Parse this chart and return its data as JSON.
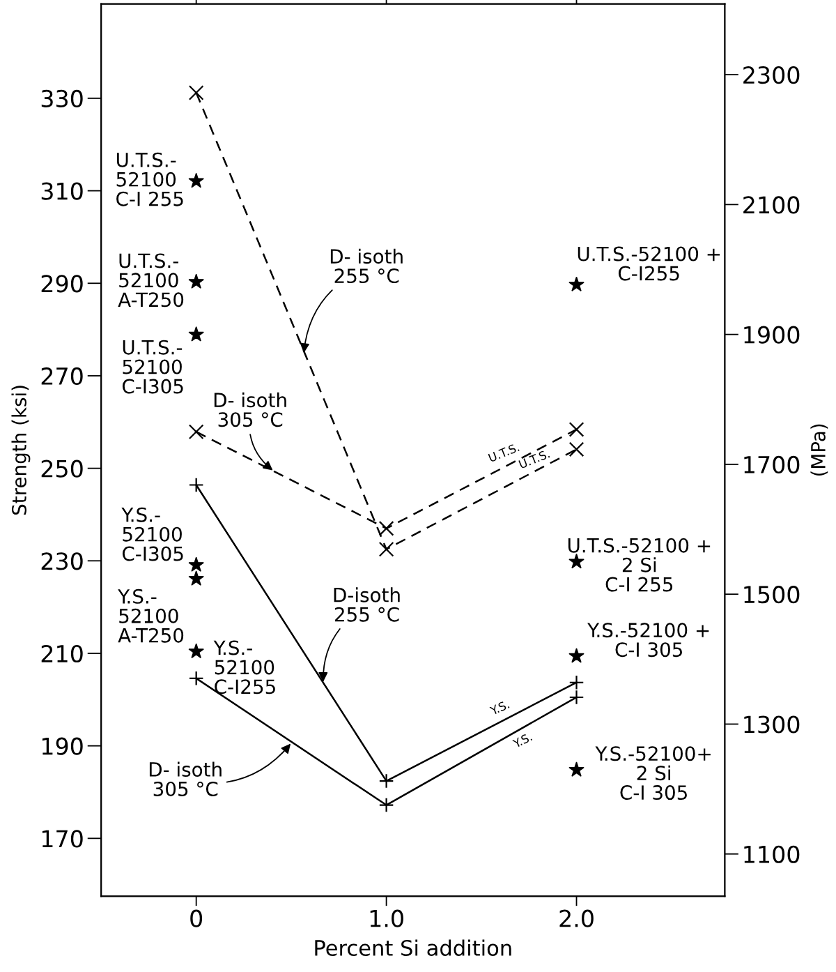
{
  "chart_data": {
    "type": "line",
    "xlabel": "Percent Si addition",
    "ylabel": "Strength (ksi)",
    "y2label": "(MPa)",
    "xlim": [
      -0.5,
      2.78
    ],
    "xticks": [
      0,
      {
        "value": 1,
        "label": "1.0"
      },
      {
        "value": 2,
        "label": "2.0"
      }
    ],
    "ylim": [
      157.5,
      350.4
    ],
    "yticks": [
      170,
      190,
      210,
      230,
      250,
      270,
      290,
      310,
      330
    ],
    "y2lim": [
      1035,
      2409
    ],
    "y2ticks": [
      1100,
      1300,
      1500,
      1700,
      1900,
      2100,
      2300
    ],
    "grid": false,
    "series": [
      {
        "type": "line",
        "x": [
          0,
          1,
          2
        ],
        "values": [
          331.2,
          232.5,
          254.1
        ],
        "color": "#000000",
        "marker": "cross",
        "line_style": "dashed"
      },
      {
        "type": "line",
        "x": [
          0,
          1,
          2
        ],
        "values": [
          257.9,
          237.0,
          258.4
        ],
        "color": "#000000",
        "marker": "cross",
        "line_style": "dashed"
      },
      {
        "type": "line",
        "x": [
          0,
          1,
          2
        ],
        "values": [
          246.4,
          182.4,
          203.7
        ],
        "color": "#000000",
        "marker": "plus",
        "line_style": "solid"
      },
      {
        "type": "line",
        "x": [
          0,
          1,
          2
        ],
        "values": [
          204.6,
          177.2,
          200.5
        ],
        "color": "#000000",
        "marker": "plus",
        "line_style": "solid"
      },
      {
        "type": "scatter",
        "x": [
          0,
          0,
          0,
          0,
          0,
          0,
          2,
          2,
          2,
          2
        ],
        "values": [
          312.1,
          290.3,
          278.9,
          229.1,
          226.1,
          210.4,
          289.7,
          229.8,
          209.4,
          184.8
        ],
        "color": "#000000",
        "marker": "star"
      }
    ],
    "annotations": [
      {
        "text": "U.T.S.-\n52100\nC-I 255",
        "x": 0,
        "y": 312.1
      },
      {
        "text": "U.T.S.-\n52100\nA-T250",
        "x": 0,
        "y": 290.3
      },
      {
        "text": "U.T.S.-\n52100\nC-I305",
        "x": 0,
        "y": 278.9
      },
      {
        "text": "Y.S.-\n52100\nC-I305",
        "x": 0,
        "y": 229.1
      },
      {
        "text": "Y.S.-\n52100\nA-T250",
        "x": 0,
        "y": 226.1
      },
      {
        "text": "Y.S.-\n52100\nC-I255",
        "x": 0,
        "y": 210.4
      },
      {
        "text": "U.T.S.-52100 +\nC-I255",
        "x": 2,
        "y": 289.7
      },
      {
        "text": "U.T.S.-52100 +\n2 Si\nC-I 255",
        "x": 2,
        "y": 229.8
      },
      {
        "text": "Y.S.-52100 +\nC-I 305",
        "x": 2,
        "y": 209.4
      },
      {
        "text": "Y.S.-52100+\n2 Si\nC-I 305",
        "x": 2,
        "y": 184.8
      },
      {
        "text": "D- isoth\n255 °C",
        "x": 0.565,
        "y": 274.5
      },
      {
        "text": "D- isoth\n305 °C",
        "x": 0.411,
        "y": 249.3
      },
      {
        "text": "D-isoth\n255 °C",
        "x": 0.668,
        "y": 203.4
      },
      {
        "text": "D- isoth\n305 °C",
        "x": 0.503,
        "y": 190.8
      },
      {
        "text": "U.T.S.",
        "x": 1.62,
        "y": 250.3
      },
      {
        "text": "U.T.S.",
        "x": 1.78,
        "y": 249.3
      },
      {
        "text": "Y.S.",
        "x": 1.6,
        "y": 195.2
      },
      {
        "text": "Y.S.",
        "x": 1.72,
        "y": 194.0
      }
    ]
  }
}
